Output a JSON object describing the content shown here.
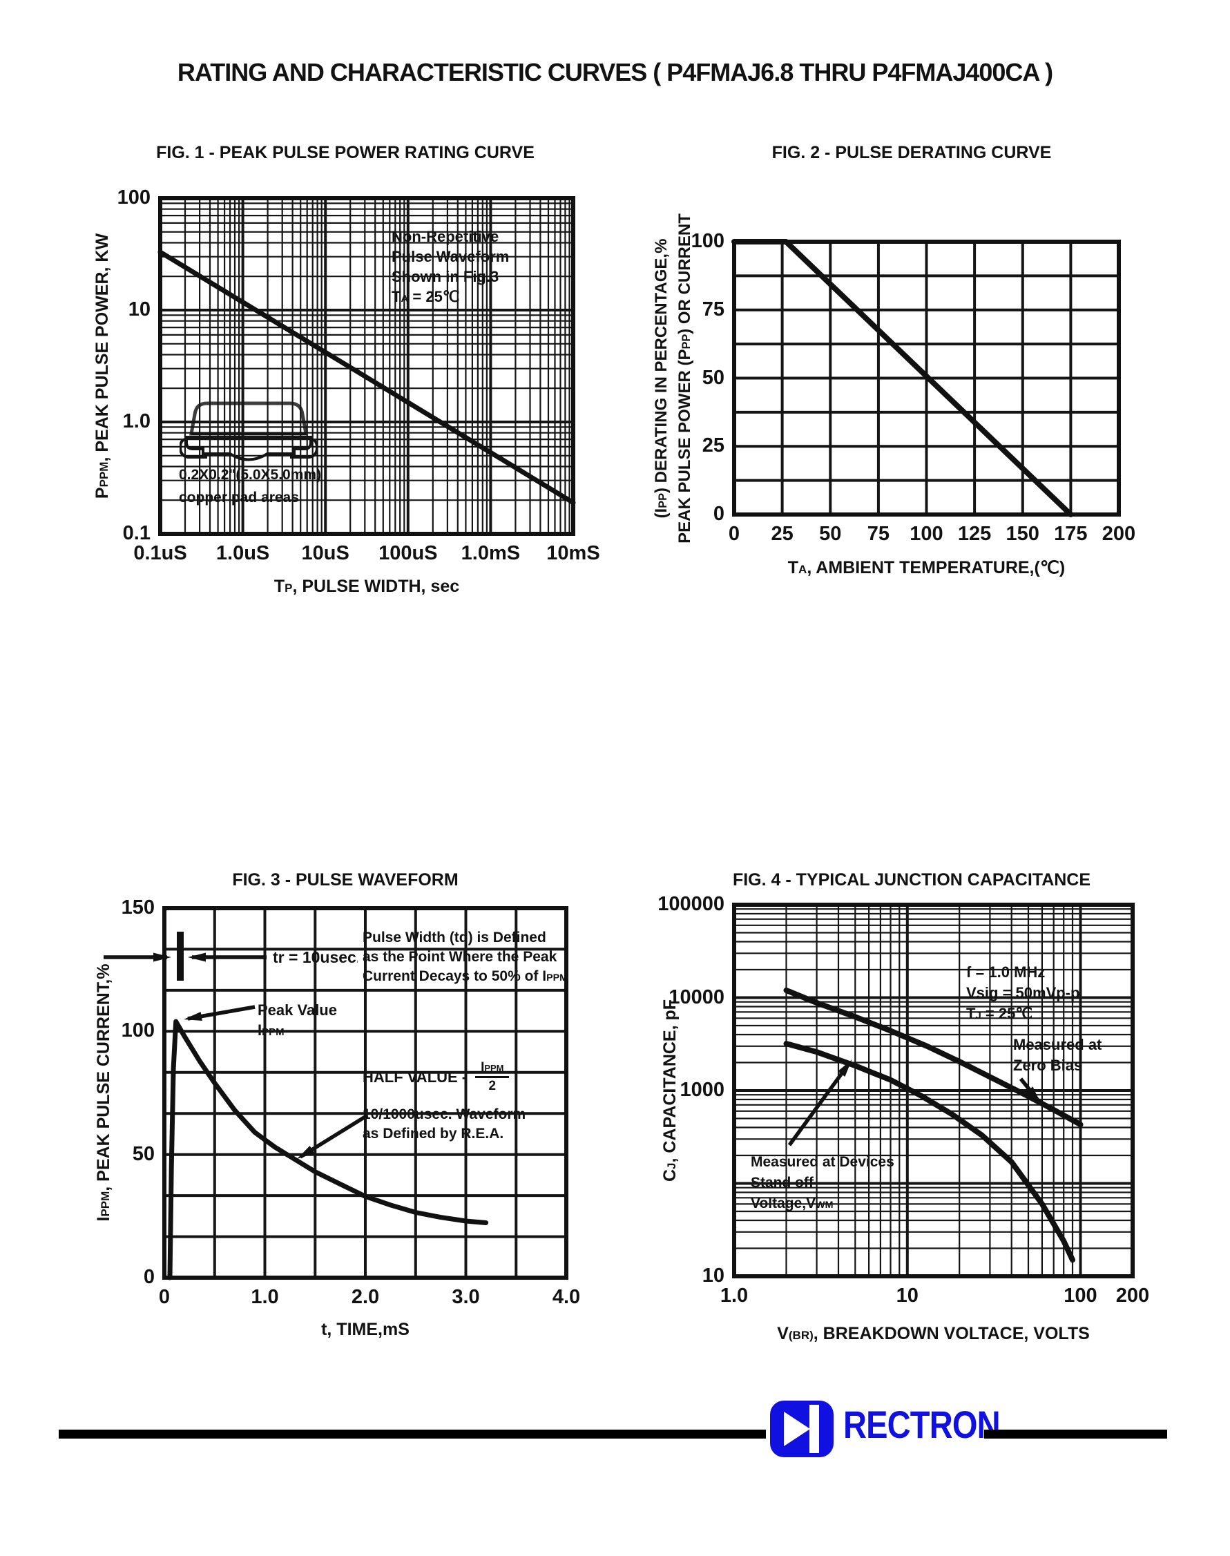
{
  "page": {
    "title": "RATING AND CHARACTERISTIC CURVES ( P4FMAJ6.8 THRU P4FMAJ400CA )"
  },
  "logo": {
    "brand": "RECTRON",
    "blue": "#1010e0",
    "bar_color": "#000000"
  },
  "chart_data": [
    {
      "id": "fig1",
      "type": "line",
      "title": "FIG. 1 - PEAK PULSE POWER RATING CURVE",
      "xlabel": "T{P}, PULSE WIDTH, sec",
      "ylabel": "P{PPM}, PEAK PULSE POWER, KW",
      "xscale": "log",
      "yscale": "log",
      "xlim": [
        1e-07,
        0.01
      ],
      "ylim": [
        0.1,
        100
      ],
      "xticks": [
        {
          "v": 1e-07,
          "label": "0.1uS"
        },
        {
          "v": 1e-06,
          "label": "1.0uS"
        },
        {
          "v": 1e-05,
          "label": "10uS"
        },
        {
          "v": 0.0001,
          "label": "100uS"
        },
        {
          "v": 0.001,
          "label": "1.0mS"
        },
        {
          "v": 0.01,
          "label": "10mS"
        }
      ],
      "yticks": [
        {
          "v": 100,
          "label": "100"
        },
        {
          "v": 10,
          "label": "10"
        },
        {
          "v": 1,
          "label": "1.0"
        },
        {
          "v": 0.1,
          "label": "0.1"
        }
      ],
      "series": [
        {
          "name": "peak pulse power rating",
          "points": [
            [
              1e-07,
              33
            ],
            [
              0.01,
              0.19
            ]
          ]
        }
      ],
      "annotations": {
        "note_lines": [
          "Non-Repetitive",
          "Pulse Waveform",
          "Shown in Fig.3",
          "T{A} = 25℃"
        ],
        "pad_lines": [
          "0.2X0.2\"(5.0X5.0mm)",
          "copper pad areas"
        ]
      }
    },
    {
      "id": "fig2",
      "type": "line",
      "title": "FIG. 2 - PULSE DERATING CURVE",
      "xlabel": "T{A}, AMBIENT TEMPERATURE,(℃)",
      "ylabel": [
        "(I{PP}) DERATING IN PERCENTAGE,%",
        "PEAK PULSE POWER (P{PP}) OR CURRENT"
      ],
      "xscale": "linear",
      "yscale": "linear",
      "xlim": [
        0,
        200
      ],
      "ylim": [
        0,
        100
      ],
      "grid": {
        "x_step": 25,
        "y_step": 12.5
      },
      "xticks": [
        {
          "v": 0,
          "label": "0"
        },
        {
          "v": 25,
          "label": "25"
        },
        {
          "v": 50,
          "label": "50"
        },
        {
          "v": 75,
          "label": "75"
        },
        {
          "v": 100,
          "label": "100"
        },
        {
          "v": 125,
          "label": "125"
        },
        {
          "v": 150,
          "label": "150"
        },
        {
          "v": 175,
          "label": "175"
        },
        {
          "v": 200,
          "label": "200"
        }
      ],
      "yticks": [
        {
          "v": 100,
          "label": "100"
        },
        {
          "v": 75,
          "label": "75"
        },
        {
          "v": 50,
          "label": "50"
        },
        {
          "v": 25,
          "label": "25"
        },
        {
          "v": 0,
          "label": "0"
        }
      ],
      "series": [
        {
          "name": "pulse derating",
          "points": [
            [
              0,
              100
            ],
            [
              27,
              100
            ],
            [
              175,
              0
            ]
          ]
        }
      ],
      "annotations": {}
    },
    {
      "id": "fig3",
      "type": "line",
      "title": "FIG. 3 - PULSE WAVEFORM",
      "xlabel": "t, TIME,mS",
      "ylabel": "I{PPM}, PEAK PULSE CURRENT,%",
      "xscale": "linear",
      "yscale": "linear",
      "xlim": [
        0,
        4
      ],
      "ylim": [
        0,
        150
      ],
      "grid": {
        "x_step": 0.5,
        "y_step": 16.6667
      },
      "xticks": [
        {
          "v": 0,
          "label": "0"
        },
        {
          "v": 1,
          "label": "1.0"
        },
        {
          "v": 2,
          "label": "2.0"
        },
        {
          "v": 3,
          "label": "3.0"
        },
        {
          "v": 4,
          "label": "4.0"
        }
      ],
      "yticks": [
        {
          "v": 150,
          "label": "150"
        },
        {
          "v": 100,
          "label": "100"
        },
        {
          "v": 50,
          "label": "50"
        },
        {
          "v": 0,
          "label": "0"
        }
      ],
      "series": [
        {
          "name": "10/1000usec pulse waveform",
          "points": [
            [
              0.055,
              0
            ],
            [
              0.07,
              45
            ],
            [
              0.09,
              85
            ],
            [
              0.115,
              104
            ],
            [
              0.2,
              98
            ],
            [
              0.35,
              88
            ],
            [
              0.5,
              79
            ],
            [
              0.7,
              68
            ],
            [
              0.9,
              59
            ],
            [
              1.1,
              53
            ],
            [
              1.3,
              48
            ],
            [
              1.5,
              43
            ],
            [
              1.75,
              38
            ],
            [
              2.0,
              33
            ],
            [
              2.25,
              29.5
            ],
            [
              2.5,
              26.5
            ],
            [
              2.75,
              24.5
            ],
            [
              3.0,
              23
            ],
            [
              3.2,
              22.3
            ]
          ]
        }
      ],
      "annotations": {
        "tr_label": "tr = 10usec.",
        "td_lines": [
          "Pulse Width (td) is Defined",
          "as the Point Where the Peak",
          "Current Decays to 50% of I{PPM}"
        ],
        "peak_lines": [
          "Peak Value",
          "I{PPM}"
        ],
        "half_prefix": "HALF VALUE -",
        "frac_num": "I{PPM}",
        "frac_den": "2",
        "rea_lines": [
          "10/1000usec. Waveform",
          "as Defined by R.E.A."
        ]
      }
    },
    {
      "id": "fig4",
      "type": "line",
      "title": "FIG. 4 - TYPICAL JUNCTION CAPACITANCE",
      "xlabel": "V{(BR)}, BREAKDOWN VOLTACE, VOLTS",
      "ylabel": "C{J}, CAPACITANCE, pF",
      "xscale": "log",
      "yscale": "log",
      "xlim": [
        1,
        200
      ],
      "ylim": [
        10,
        100000
      ],
      "xticks": [
        {
          "v": 1,
          "label": "1.0"
        },
        {
          "v": 10,
          "label": "10"
        },
        {
          "v": 100,
          "label": "100"
        },
        {
          "v": 200,
          "label": "200"
        }
      ],
      "yticks": [
        {
          "v": 100000,
          "label": "100000"
        },
        {
          "v": 10000,
          "label": "10000"
        },
        {
          "v": 1000,
          "label": "1000"
        },
        {
          "v": 10,
          "label": "10"
        }
      ],
      "series": [
        {
          "name": "Measured at Zero Bias",
          "points": [
            [
              2,
              12000
            ],
            [
              3,
              8800
            ],
            [
              5,
              6200
            ],
            [
              8,
              4400
            ],
            [
              13,
              3000
            ],
            [
              20,
              2050
            ],
            [
              30,
              1400
            ],
            [
              48,
              900
            ],
            [
              70,
              620
            ],
            [
              100,
              430
            ]
          ]
        },
        {
          "name": "Measured at Devices Stand off Voltage,VWM",
          "points": [
            [
              2,
              3200
            ],
            [
              3,
              2600
            ],
            [
              5,
              1850
            ],
            [
              8,
              1300
            ],
            [
              12,
              880
            ],
            [
              18,
              560
            ],
            [
              27,
              330
            ],
            [
              40,
              170
            ],
            [
              60,
              60
            ],
            [
              80,
              24
            ],
            [
              90,
              15
            ]
          ]
        }
      ],
      "annotations": {
        "cond_lines": [
          "f = 1.0 MHz",
          "Vsig = 50mVp-p",
          "T{J} = 25℃"
        ],
        "zero_bias_lines": [
          "Measured at",
          "Zero Bias"
        ],
        "standoff_lines": [
          "Measured at Devices",
          "Stand off",
          "Voltage,V{WM}"
        ]
      }
    }
  ]
}
